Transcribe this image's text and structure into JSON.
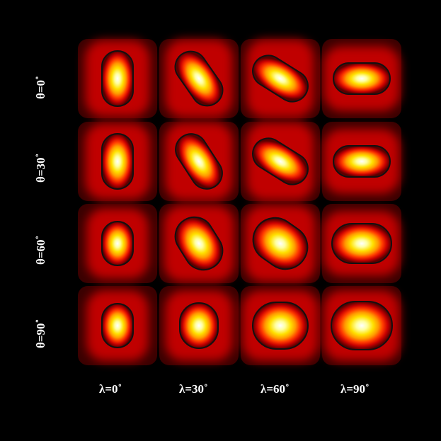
{
  "figure": {
    "row_labels": [
      "θ=0˚",
      "θ=30˚",
      "θ=60˚",
      "θ=90˚"
    ],
    "col_labels": [
      "λ=0˚",
      "λ=30˚",
      "λ=60˚",
      "λ=90˚"
    ],
    "background_color": "#000000",
    "colormap": [
      "#000000",
      "#5a0000",
      "#c80000",
      "#ff3a00",
      "#ff9a00",
      "#ffe000",
      "#ffffa0",
      "#ffffff"
    ],
    "contour_color": "#111111",
    "cells": [
      [
        {
          "theta": 0,
          "lambda": 0,
          "shape": "vertical-capsule",
          "tilt_deg": 0
        },
        {
          "theta": 0,
          "lambda": 30,
          "shape": "tilted-capsule",
          "tilt_deg": 35
        },
        {
          "theta": 0,
          "lambda": 60,
          "shape": "tilted-capsule",
          "tilt_deg": 58
        },
        {
          "theta": 0,
          "lambda": 90,
          "shape": "horizontal-capsule",
          "tilt_deg": 90
        }
      ],
      [
        {
          "theta": 30,
          "lambda": 0,
          "shape": "vertical-capsule",
          "tilt_deg": 0
        },
        {
          "theta": 30,
          "lambda": 30,
          "shape": "tilted-capsule",
          "tilt_deg": 33
        },
        {
          "theta": 30,
          "lambda": 60,
          "shape": "tilted-capsule",
          "tilt_deg": 58
        },
        {
          "theta": 30,
          "lambda": 90,
          "shape": "horizontal-capsule",
          "tilt_deg": 90
        }
      ],
      [
        {
          "theta": 60,
          "lambda": 0,
          "shape": "vertical-ellipse",
          "tilt_deg": 0
        },
        {
          "theta": 60,
          "lambda": 30,
          "shape": "tilted-ellipse",
          "tilt_deg": 32
        },
        {
          "theta": 60,
          "lambda": 60,
          "shape": "tilted-ellipse",
          "tilt_deg": 55
        },
        {
          "theta": 60,
          "lambda": 90,
          "shape": "horizontal-capsule",
          "tilt_deg": 90
        }
      ],
      [
        {
          "theta": 90,
          "lambda": 0,
          "shape": "vertical-ellipse",
          "tilt_deg": 0
        },
        {
          "theta": 90,
          "lambda": 30,
          "shape": "ellipse",
          "tilt_deg": 0
        },
        {
          "theta": 90,
          "lambda": 60,
          "shape": "horizontal-ellipse",
          "tilt_deg": 0
        },
        {
          "theta": 90,
          "lambda": 90,
          "shape": "horizontal-ellipse",
          "tilt_deg": 0
        }
      ]
    ]
  }
}
